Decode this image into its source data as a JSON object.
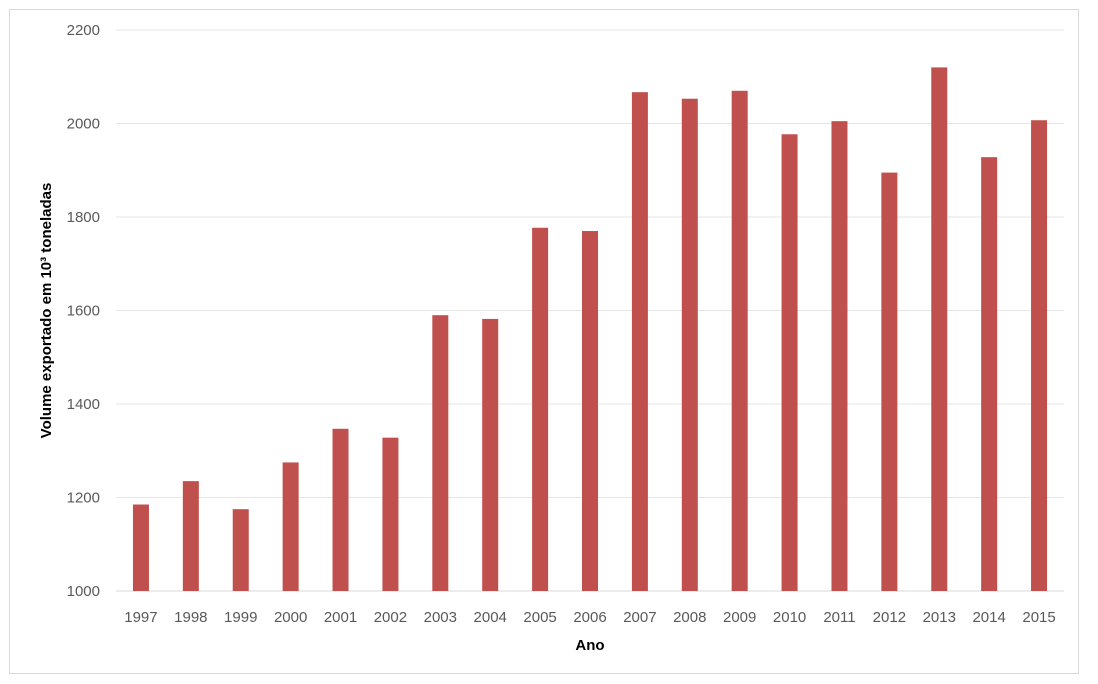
{
  "chart_data": {
    "type": "bar",
    "categories": [
      "1997",
      "1998",
      "1999",
      "2000",
      "2001",
      "2002",
      "2003",
      "2004",
      "2005",
      "2006",
      "2007",
      "2008",
      "2009",
      "2010",
      "2011",
      "2012",
      "2013",
      "2014",
      "2015"
    ],
    "values": [
      1185,
      1235,
      1175,
      1275,
      1347,
      1328,
      1590,
      1582,
      1777,
      1770,
      2067,
      2053,
      2070,
      1977,
      2005,
      1895,
      2120,
      1928,
      2007
    ],
    "title": "",
    "xlabel": "Ano",
    "ylabel": "Volume exportado em 10³ toneladas",
    "ylim": [
      1000,
      2200
    ],
    "yticks": [
      1000,
      1200,
      1400,
      1600,
      1800,
      2000,
      2200
    ],
    "grid": true,
    "legend": "none",
    "bar_color": "#C0504D"
  }
}
